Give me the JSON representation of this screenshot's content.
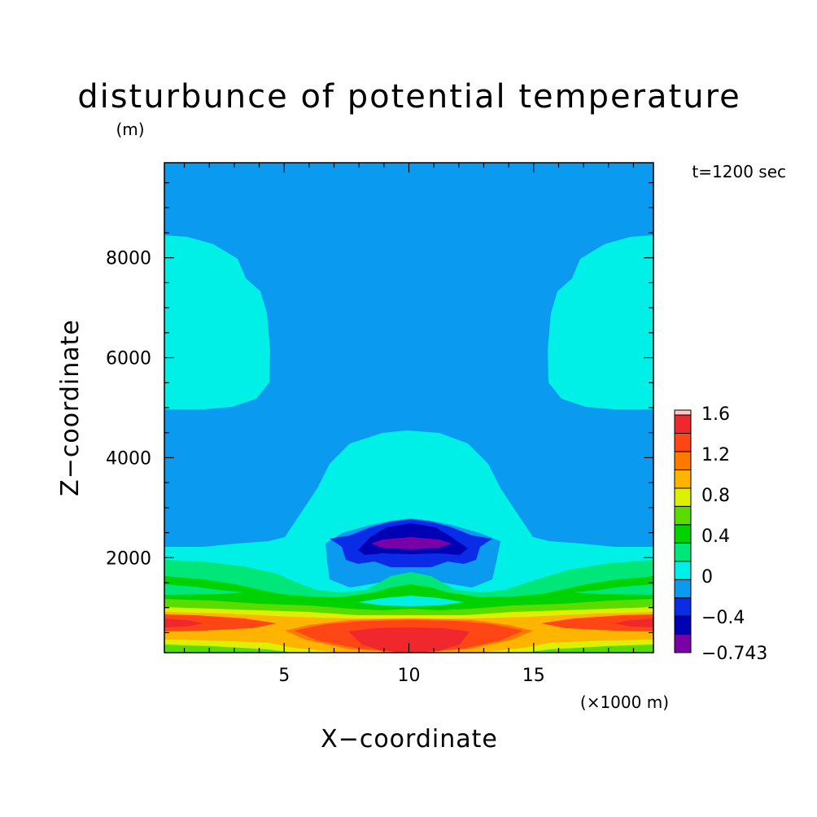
{
  "chart_data": {
    "type": "heatmap",
    "title": "disturbunce of potential temperature",
    "y_unit": "(m)",
    "time_label": "t=1200 sec",
    "xlabel": "X−coordinate",
    "ylabel": "Z−coordinate",
    "x_unit": "(×1000 m)",
    "xlim": [
      0.2,
      19.8
    ],
    "ylim": [
      100,
      9900
    ],
    "x_ticks": [
      5,
      10,
      15
    ],
    "x_tick_labels": [
      "5",
      "10",
      "15"
    ],
    "y_ticks": [
      2000,
      4000,
      6000,
      8000
    ],
    "y_tick_labels": [
      "2000",
      "4000",
      "6000",
      "8000"
    ],
    "colorbar": {
      "levels": [
        -0.743,
        -0.6,
        -0.4,
        -0.2,
        0,
        0.2,
        0.4,
        0.6,
        0.8,
        1.0,
        1.2,
        1.4,
        1.6,
        1.65
      ],
      "colors": [
        "#7a00a8",
        "#0000b4",
        "#0a2ce6",
        "#0a9af0",
        "#00f0e8",
        "#00e678",
        "#00d200",
        "#5adc00",
        "#dcf000",
        "#ffb400",
        "#ff7800",
        "#ff4614",
        "#f0282d"
      ],
      "labels": [
        "1.6",
        "1.2",
        "0.8",
        "0.4",
        "0",
        "−0.4",
        "−0.743"
      ]
    },
    "field_layers": [
      {
        "value": "<0",
        "color": "#0a9af0",
        "region": "background (upper domain)"
      },
      {
        "value": "0 to 0.2",
        "color": "#00f0e8",
        "region": "lateral lobes z≈5000–8500 m; central dome to z≈4600 m; layer below z≈2100 m"
      },
      {
        "value": "-0.2 to 0",
        "color": "#0a9af0",
        "region": "shell around cold core z≈1400–2600 m"
      },
      {
        "value": "-0.4 to -0.2",
        "color": "#0a2ce6",
        "region": "cold core x≈8–12, z≈1900–2750 m"
      },
      {
        "value": "-0.6 to -0.4",
        "color": "#0000b4",
        "region": "cold core x≈8.7–11.3, z≈2150–2650 m"
      },
      {
        "value": "< -0.6",
        "color": "#7a00a8",
        "region": "cold core x≈9–11, z≈2250–2400 m"
      },
      {
        "value": "0.2 to 1.6",
        "color": "mixed",
        "region": "warm stratified layers below z≈1900 m, max near x≈10, z<500 m"
      }
    ]
  }
}
